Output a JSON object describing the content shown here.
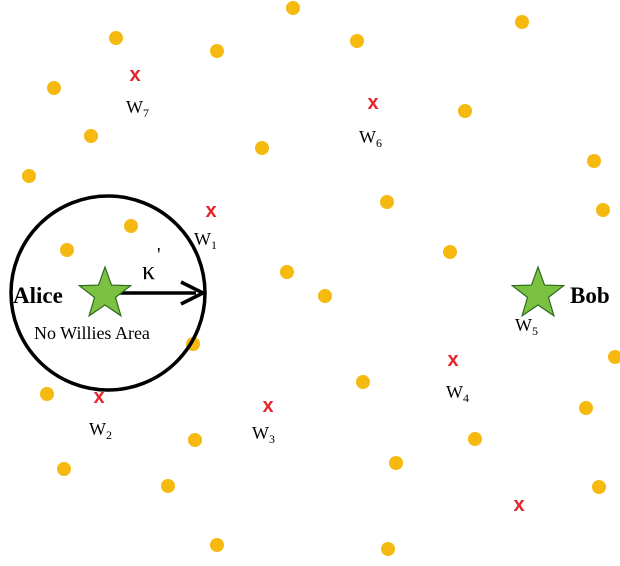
{
  "colors": {
    "node": "#F5B90F",
    "willie_mark": "#E8242A",
    "star_fill": "#7CC242",
    "star_stroke": "#2F6B1E",
    "circle_stroke": "#000000",
    "text": "#000000"
  },
  "alice": {
    "label": "Alice"
  },
  "bob": {
    "label": "Bob"
  },
  "area_label": "No Willies Area",
  "radius_label": "κ",
  "radius_prime": "'",
  "willie_mark_glyph": "x",
  "willies": [
    {
      "letter": "W",
      "sub": "1"
    },
    {
      "letter": "W",
      "sub": "2"
    },
    {
      "letter": "W",
      "sub": "3"
    },
    {
      "letter": "W",
      "sub": "4"
    },
    {
      "letter": "W",
      "sub": "5"
    },
    {
      "letter": "W",
      "sub": "6"
    },
    {
      "letter": "W",
      "sub": "7"
    }
  ]
}
